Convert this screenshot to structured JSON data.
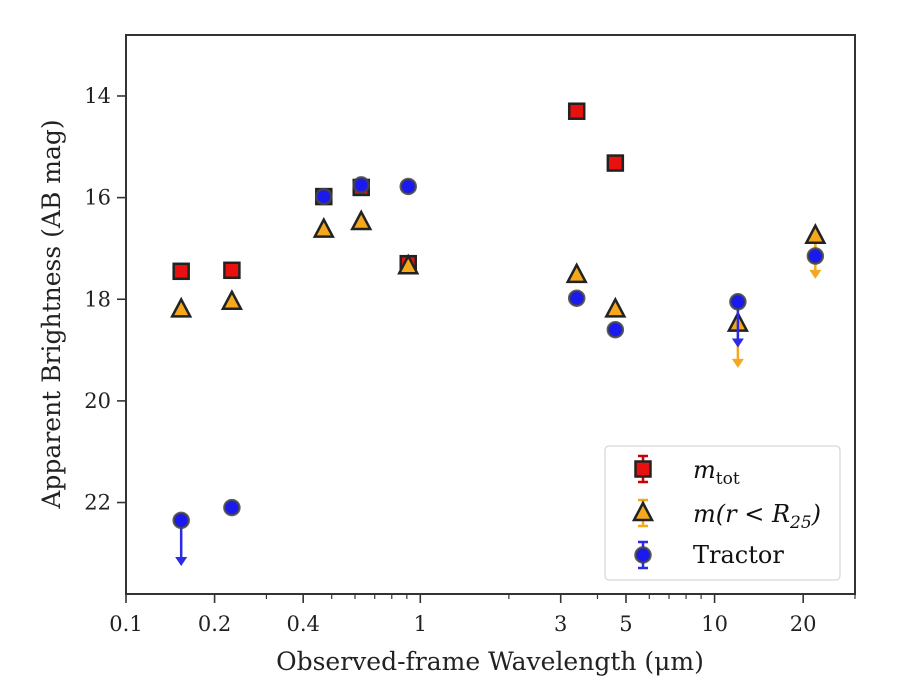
{
  "chart_data": {
    "type": "scatter",
    "xlabel": "Observed-frame Wavelength (μm)",
    "ylabel": "Apparent Brightness (AB mag)",
    "xscale": "log",
    "xlim": [
      0.1,
      30
    ],
    "ylim": [
      23.8,
      12.8
    ],
    "y_inverted": true,
    "x_ticks": [
      {
        "value": 0.1,
        "label": "0.1"
      },
      {
        "value": 0.2,
        "label": "0.2"
      },
      {
        "value": 0.4,
        "label": "0.4"
      },
      {
        "value": 1,
        "label": "1"
      },
      {
        "value": 3,
        "label": "3"
      },
      {
        "value": 5,
        "label": "5"
      },
      {
        "value": 10,
        "label": "10"
      },
      {
        "value": 20,
        "label": "20"
      }
    ],
    "y_ticks": [
      {
        "value": 14,
        "label": "14"
      },
      {
        "value": 16,
        "label": "16"
      },
      {
        "value": 18,
        "label": "18"
      },
      {
        "value": 20,
        "label": "20"
      },
      {
        "value": 22,
        "label": "22"
      }
    ],
    "grid": false,
    "legend_position": "lower-right",
    "series": [
      {
        "name": "m_tot",
        "label_main": "m",
        "label_sub": "tot",
        "marker": "square",
        "face_color": "#e8110f",
        "edge_color": "#222222",
        "error_color": "#cc0000",
        "points": [
          {
            "x": 0.154,
            "y": 17.45
          },
          {
            "x": 0.229,
            "y": 17.43
          },
          {
            "x": 0.47,
            "y": 15.98
          },
          {
            "x": 0.63,
            "y": 15.8
          },
          {
            "x": 0.91,
            "y": 17.3
          },
          {
            "x": 3.4,
            "y": 14.3
          },
          {
            "x": 4.6,
            "y": 15.32
          }
        ]
      },
      {
        "name": "m(r < R25)",
        "label_main": "m(r < R",
        "label_sub": "25",
        "label_end": ")",
        "marker": "triangle",
        "face_color": "#f5a81c",
        "edge_color": "#222222",
        "error_color": "#f5a81c",
        "points": [
          {
            "x": 0.154,
            "y": 18.2
          },
          {
            "x": 0.229,
            "y": 18.05
          },
          {
            "x": 0.47,
            "y": 16.63
          },
          {
            "x": 0.63,
            "y": 16.48
          },
          {
            "x": 0.91,
            "y": 17.35
          },
          {
            "x": 3.4,
            "y": 17.52
          },
          {
            "x": 4.6,
            "y": 18.2
          },
          {
            "x": 12,
            "y": 18.48,
            "upper_limit_to": 19.35
          },
          {
            "x": 22,
            "y": 16.75,
            "upper_limit_to": 17.6
          }
        ]
      },
      {
        "name": "Tractor",
        "label_main": "Tractor",
        "marker": "circle",
        "face_color": "#1a1af0",
        "edge_color": "#444444",
        "error_color": "#2a2ae8",
        "points": [
          {
            "x": 0.154,
            "y": 22.35,
            "upper_limit_to": 23.25
          },
          {
            "x": 0.229,
            "y": 22.1
          },
          {
            "x": 0.47,
            "y": 15.98
          },
          {
            "x": 0.63,
            "y": 15.75
          },
          {
            "x": 0.91,
            "y": 15.78
          },
          {
            "x": 3.4,
            "y": 17.98
          },
          {
            "x": 4.6,
            "y": 18.6
          },
          {
            "x": 12,
            "y": 18.05,
            "upper_limit_to": 18.95
          },
          {
            "x": 22,
            "y": 17.15
          }
        ]
      }
    ]
  }
}
